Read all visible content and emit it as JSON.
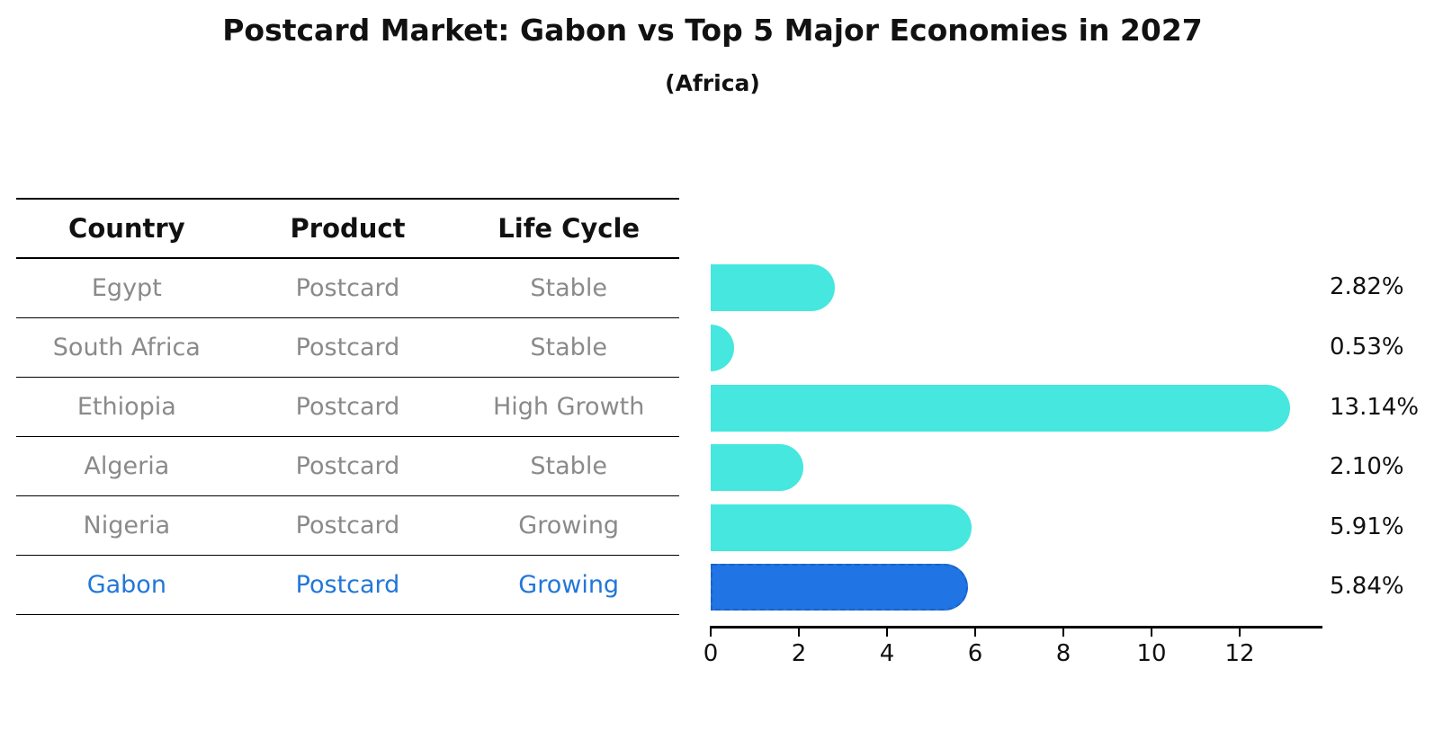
{
  "header": {
    "title": "Postcard Market: Gabon vs Top 5 Major Economies in 2027",
    "subtitle": "(Africa)"
  },
  "table": {
    "headers": [
      "Country",
      "Product",
      "Life Cycle"
    ],
    "rows": [
      {
        "country": "Egypt",
        "product": "Postcard",
        "life_cycle": "Stable",
        "highlight": false
      },
      {
        "country": "South Africa",
        "product": "Postcard",
        "life_cycle": "Stable",
        "highlight": false
      },
      {
        "country": "Ethiopia",
        "product": "Postcard",
        "life_cycle": "High Growth",
        "highlight": false
      },
      {
        "country": "Algeria",
        "product": "Postcard",
        "life_cycle": "Stable",
        "highlight": false
      },
      {
        "country": "Nigeria",
        "product": "Postcard",
        "life_cycle": "Growing",
        "highlight": false
      },
      {
        "country": "Gabon",
        "product": "Postcard",
        "life_cycle": "Growing",
        "highlight": true
      }
    ]
  },
  "chart_data": {
    "type": "bar",
    "orientation": "horizontal",
    "title": "Postcard Market: Gabon vs Top 5 Major Economies in 2027",
    "subtitle": "(Africa)",
    "categories": [
      "Egypt",
      "South Africa",
      "Ethiopia",
      "Algeria",
      "Nigeria",
      "Gabon"
    ],
    "values": [
      2.82,
      0.53,
      13.14,
      2.1,
      5.91,
      5.84
    ],
    "value_labels": [
      "2.82%",
      "0.53%",
      "13.14%",
      "2.10%",
      "5.91%",
      "5.84%"
    ],
    "highlight_index": 5,
    "xlabel": "",
    "ylabel": "",
    "xticks": [
      0,
      2,
      4,
      6,
      8,
      10,
      12
    ],
    "xlim": [
      0,
      13.9
    ],
    "grid": false,
    "legend": "none",
    "colors": {
      "bar_default": "#45e7df",
      "bar_highlight": "#2074e4",
      "bar_highlight_border": "#1a63c8",
      "highlight_text": "#2277d8",
      "table_text": "#8a8a8a",
      "axis": "#000000"
    }
  }
}
